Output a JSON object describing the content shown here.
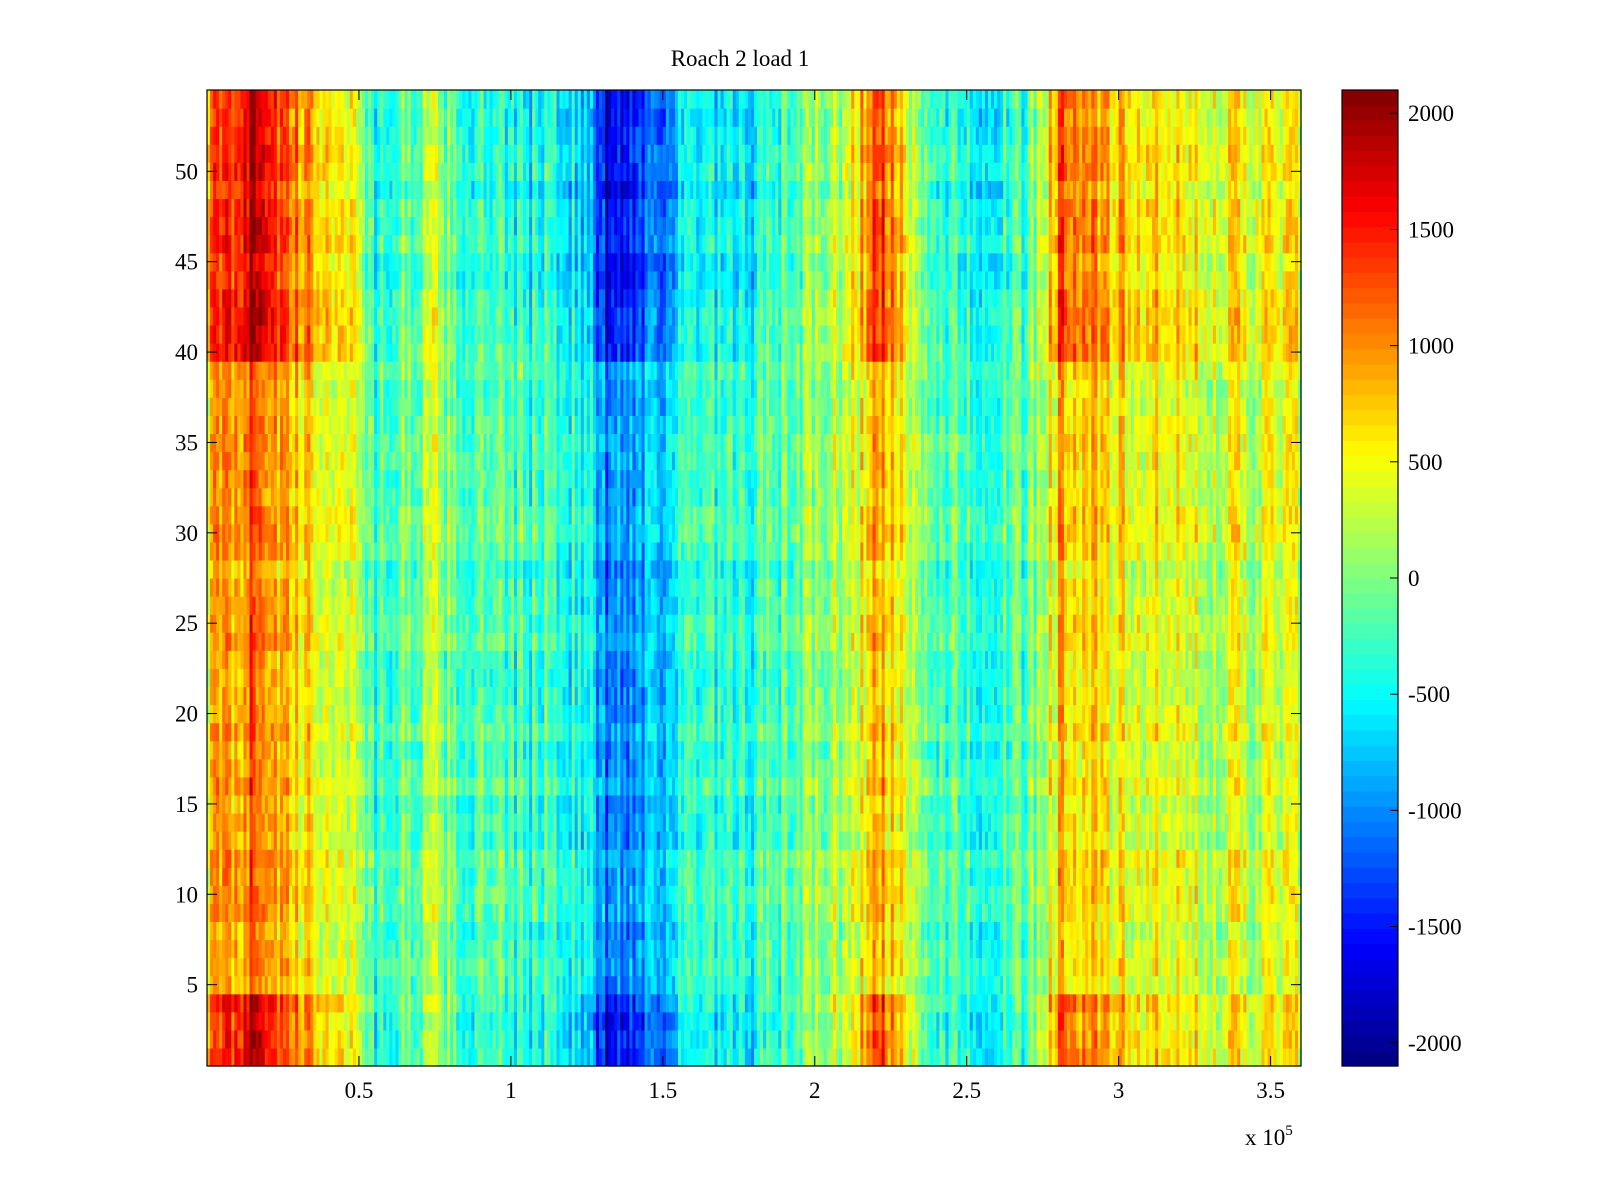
{
  "chart_data": {
    "type": "heatmap",
    "title": "Roach 2 load 1",
    "xlabel": "",
    "ylabel": "",
    "x_multiplier_label": "x 10",
    "x_multiplier_exponent": "5",
    "xlim": [
      0,
      360000
    ],
    "ylim": [
      0.5,
      54.5
    ],
    "x_ticks": [
      50000,
      100000,
      150000,
      200000,
      250000,
      300000,
      350000
    ],
    "x_tick_labels": [
      "0.5",
      "1",
      "1.5",
      "2",
      "2.5",
      "3",
      "3.5"
    ],
    "y_ticks": [
      5,
      10,
      15,
      20,
      25,
      30,
      35,
      40,
      45,
      50
    ],
    "y_tick_labels": [
      "5",
      "10",
      "15",
      "20",
      "25",
      "30",
      "35",
      "40",
      "45",
      "50"
    ],
    "n_rows": 54,
    "colormap": "jet",
    "clim": [
      -2100,
      2100
    ],
    "colorbar": {
      "ticks": [
        2000,
        1500,
        1000,
        500,
        0,
        -500,
        -1000,
        -1500,
        -2000
      ],
      "tick_labels": [
        "2000",
        "1500",
        "1000",
        "500",
        "0",
        "-500",
        "-1000",
        "-1500",
        "-2000"
      ]
    },
    "column_profile_description": "approximate mean value per x region",
    "column_profile": [
      {
        "x": 0,
        "value": 700
      },
      {
        "x": 8000,
        "value": 900
      },
      {
        "x": 17000,
        "value": 1300
      },
      {
        "x": 26000,
        "value": 700
      },
      {
        "x": 38000,
        "value": 500
      },
      {
        "x": 50000,
        "value": 300
      },
      {
        "x": 55000,
        "value": -300
      },
      {
        "x": 65000,
        "value": -100
      },
      {
        "x": 75000,
        "value": 100
      },
      {
        "x": 85000,
        "value": -200
      },
      {
        "x": 100000,
        "value": -300
      },
      {
        "x": 115000,
        "value": -250
      },
      {
        "x": 125000,
        "value": -500
      },
      {
        "x": 132000,
        "value": -1100
      },
      {
        "x": 145000,
        "value": -750
      },
      {
        "x": 160000,
        "value": -350
      },
      {
        "x": 175000,
        "value": -450
      },
      {
        "x": 190000,
        "value": -150
      },
      {
        "x": 210000,
        "value": 200
      },
      {
        "x": 222000,
        "value": 900
      },
      {
        "x": 235000,
        "value": -100
      },
      {
        "x": 255000,
        "value": -300
      },
      {
        "x": 270000,
        "value": -200
      },
      {
        "x": 282000,
        "value": 900
      },
      {
        "x": 295000,
        "value": 500
      },
      {
        "x": 320000,
        "value": 350
      },
      {
        "x": 345000,
        "value": 300
      },
      {
        "x": 360000,
        "value": 350
      }
    ],
    "edge_rows_enhanced": [
      1,
      2,
      3,
      4,
      40,
      41,
      42,
      43,
      44,
      45,
      46,
      47,
      48,
      49,
      50,
      51,
      52,
      53,
      54
    ]
  }
}
